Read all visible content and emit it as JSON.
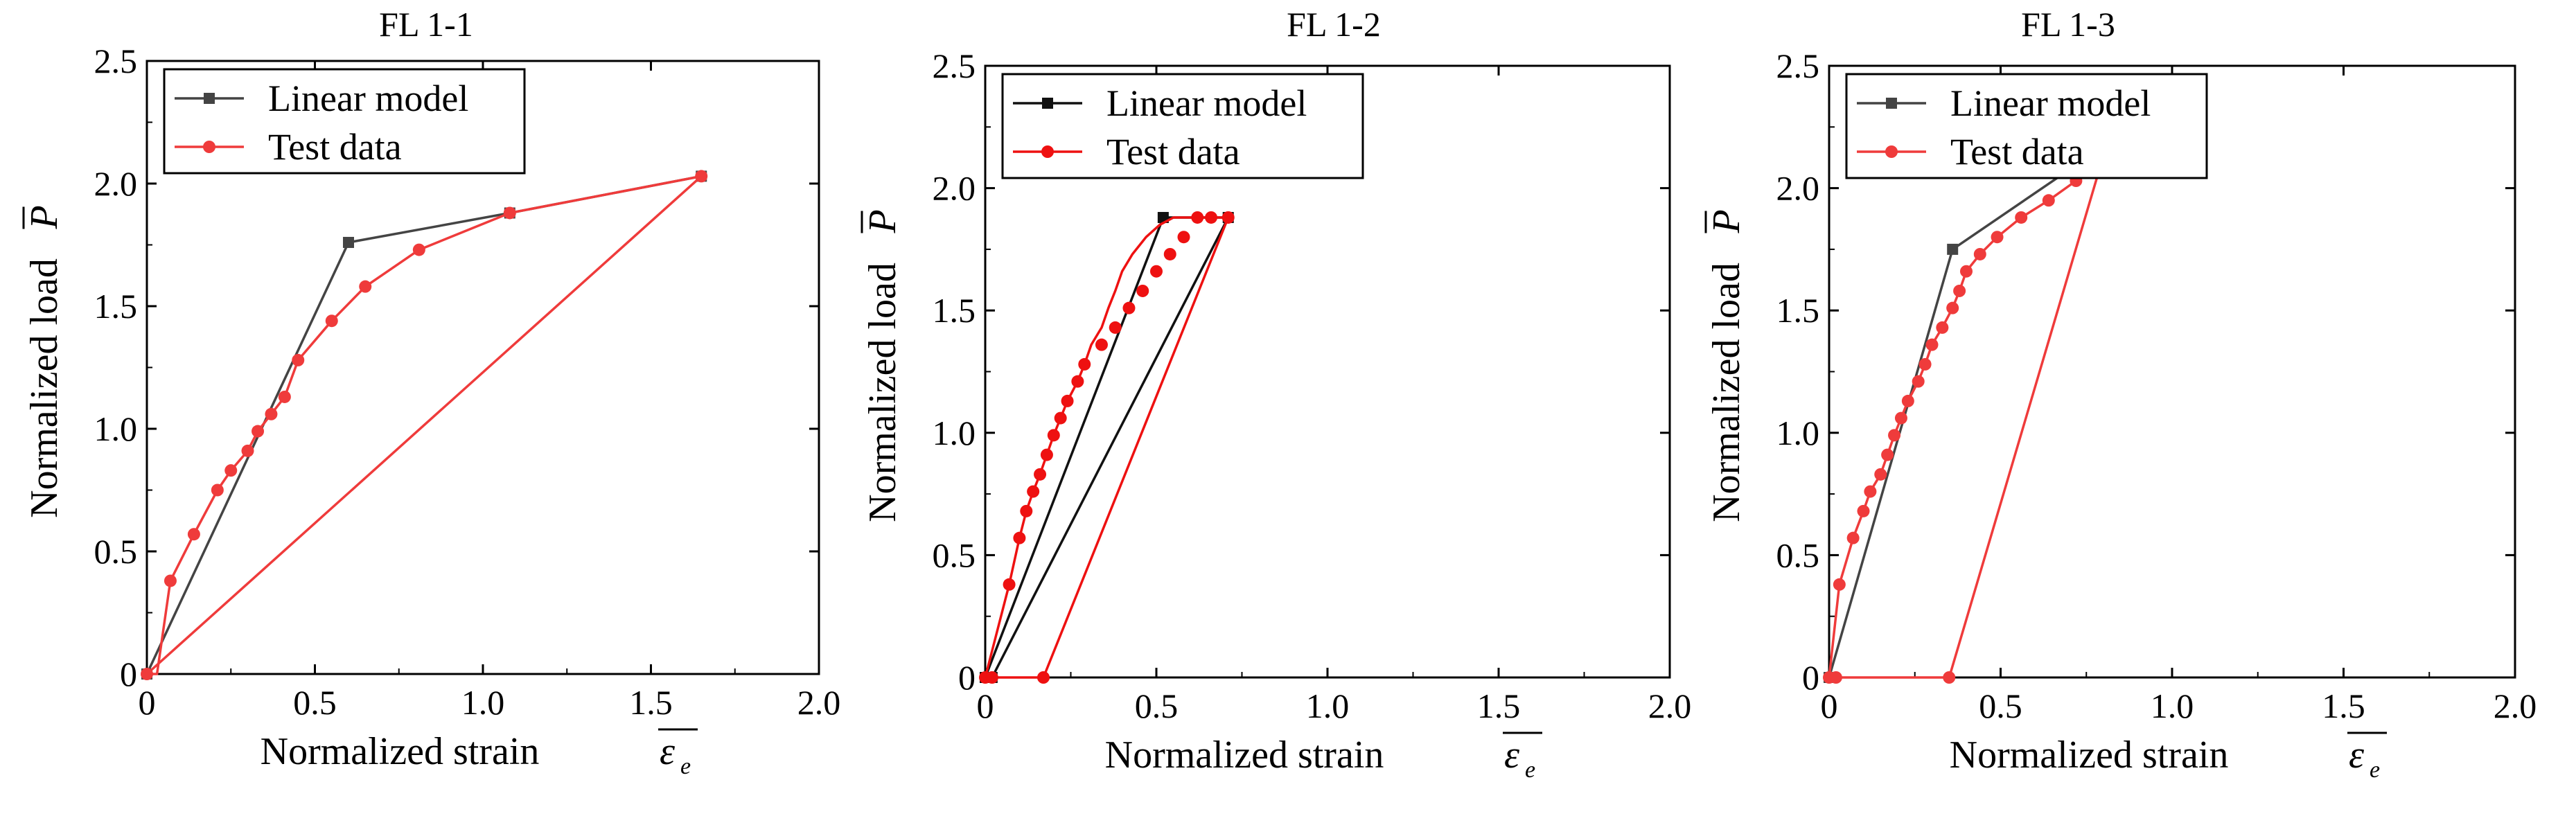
{
  "chart_data": [
    {
      "type": "line",
      "title": "FL 1-1",
      "xlabel": "Normalized strain",
      "xlabel_symbol": "ε",
      "xlabel_subscript": "e",
      "ylabel": "Normalized load",
      "ylabel_symbol": "P",
      "xlim": [
        0,
        2.0
      ],
      "ylim": [
        0,
        2.5
      ],
      "xticks": [
        "0",
        "0.5",
        "1.0",
        "1.5",
        "2.0"
      ],
      "yticks": [
        "0",
        "0.5",
        "1.0",
        "1.5",
        "2.0",
        "2.5"
      ],
      "legend_position": "top-left",
      "grid": false,
      "series": [
        {
          "name": "Linear model",
          "color": "#444444",
          "marker": "square",
          "x": [
            0,
            0.6,
            1.08,
            1.65
          ],
          "y": [
            0,
            1.76,
            1.88,
            2.03
          ],
          "marker_x": [
            0,
            0.6,
            1.08,
            1.65
          ],
          "marker_y": [
            0,
            1.76,
            1.88,
            2.03
          ]
        },
        {
          "name": "Test data",
          "color": "#ef3b3b",
          "marker": "circle",
          "x": [
            0,
            0.03,
            0.07,
            0.14,
            0.21,
            0.25,
            0.3,
            0.33,
            0.37,
            0.41,
            0.45,
            0.55,
            0.65,
            0.81,
            1.08,
            1.65,
            1.65,
            0,
            0,
            0
          ],
          "y": [
            0,
            0,
            0.38,
            0.57,
            0.75,
            0.83,
            0.91,
            0.99,
            1.06,
            1.13,
            1.28,
            1.44,
            1.58,
            1.73,
            1.88,
            2.03,
            2.03,
            0,
            0,
            0
          ],
          "marker_x": [
            0,
            0.07,
            0.14,
            0.21,
            0.25,
            0.3,
            0.33,
            0.37,
            0.41,
            0.45,
            0.55,
            0.65,
            0.81,
            1.08,
            1.65
          ],
          "marker_y": [
            0,
            0.38,
            0.57,
            0.75,
            0.83,
            0.91,
            0.99,
            1.06,
            1.13,
            1.28,
            1.44,
            1.58,
            1.73,
            1.88,
            2.03
          ]
        }
      ]
    },
    {
      "type": "line",
      "title": "FL 1-2",
      "xlabel": "Normalized strain",
      "xlabel_symbol": "ε",
      "xlabel_subscript": "e",
      "ylabel": "Normalized load",
      "ylabel_symbol": "P",
      "xlim": [
        0,
        2.0
      ],
      "ylim": [
        0,
        2.5
      ],
      "xticks": [
        "0",
        "0.5",
        "1.0",
        "1.5",
        "2.0"
      ],
      "yticks": [
        "0",
        "0.5",
        "1.0",
        "1.5",
        "2.0",
        "2.5"
      ],
      "legend_position": "top-left",
      "grid": false,
      "series": [
        {
          "name": "Linear model",
          "color": "#111111",
          "marker": "square",
          "x": [
            0,
            0.52,
            0.71,
            0.02
          ],
          "y": [
            0,
            1.88,
            1.88,
            0
          ],
          "marker_x": [
            0,
            0.52,
            0.71,
            0.02
          ],
          "marker_y": [
            0,
            1.88,
            1.88,
            0
          ]
        },
        {
          "name": "Test data",
          "color": "#ee1111",
          "marker": "circle",
          "x": [
            0,
            0.07,
            0.1,
            0.12,
            0.14,
            0.16,
            0.18,
            0.2,
            0.22,
            0.24,
            0.27,
            0.29,
            0.31,
            0.34,
            0.36,
            0.38,
            0.4,
            0.43,
            0.47,
            0.51,
            0.55,
            0.6,
            0.64,
            0.67,
            0.71,
            0.17,
            0,
            0.02
          ],
          "y": [
            0,
            0.38,
            0.57,
            0.68,
            0.76,
            0.83,
            0.91,
            0.99,
            1.06,
            1.13,
            1.21,
            1.28,
            1.36,
            1.43,
            1.51,
            1.58,
            1.66,
            1.73,
            1.8,
            1.85,
            1.88,
            1.88,
            1.88,
            1.88,
            1.88,
            0,
            0,
            0
          ],
          "marker_x": [
            0,
            0.07,
            0.1,
            0.12,
            0.14,
            0.16,
            0.18,
            0.2,
            0.22,
            0.24,
            0.27,
            0.29,
            0.34,
            0.38,
            0.42,
            0.46,
            0.5,
            0.54,
            0.58,
            0.62,
            0.66,
            0.71,
            0.17,
            0.02
          ],
          "marker_y": [
            0,
            0.38,
            0.57,
            0.68,
            0.76,
            0.83,
            0.91,
            0.99,
            1.06,
            1.13,
            1.21,
            1.28,
            1.36,
            1.43,
            1.51,
            1.58,
            1.66,
            1.73,
            1.8,
            1.88,
            1.88,
            1.88,
            0,
            0
          ]
        }
      ]
    },
    {
      "type": "line",
      "title": "FL 1-3",
      "xlabel": "Normalized strain",
      "xlabel_symbol": "ε",
      "xlabel_subscript": "e",
      "ylabel": "Normalized load",
      "ylabel_symbol": "P",
      "xlim": [
        0,
        2.0
      ],
      "ylim": [
        0,
        2.5
      ],
      "xticks": [
        "0",
        "0.5",
        "1.0",
        "1.5",
        "2.0"
      ],
      "yticks": [
        "0",
        "0.5",
        "1.0",
        "1.5",
        "2.0",
        "2.5"
      ],
      "legend_position": "top-left",
      "grid": false,
      "series": [
        {
          "name": "Linear model",
          "color": "#444444",
          "marker": "square",
          "x": [
            0,
            0.36,
            0.81
          ],
          "y": [
            0,
            1.75,
            2.18
          ],
          "marker_x": [
            0,
            0.36,
            0.81
          ],
          "marker_y": [
            0,
            1.75,
            2.18
          ]
        },
        {
          "name": "Test data",
          "color": "#ef3b3b",
          "marker": "circle",
          "x": [
            0,
            0.03,
            0.07,
            0.1,
            0.12,
            0.15,
            0.17,
            0.19,
            0.21,
            0.23,
            0.26,
            0.28,
            0.3,
            0.33,
            0.36,
            0.38,
            0.4,
            0.44,
            0.49,
            0.56,
            0.64,
            0.72,
            0.81,
            0.35,
            0.02
          ],
          "y": [
            0,
            0.38,
            0.57,
            0.68,
            0.76,
            0.83,
            0.91,
            0.99,
            1.06,
            1.13,
            1.21,
            1.28,
            1.36,
            1.43,
            1.51,
            1.58,
            1.66,
            1.73,
            1.8,
            1.88,
            1.95,
            2.03,
            2.18,
            0,
            0
          ],
          "marker_x": [
            0,
            0.03,
            0.07,
            0.1,
            0.12,
            0.15,
            0.17,
            0.19,
            0.21,
            0.23,
            0.26,
            0.28,
            0.3,
            0.33,
            0.36,
            0.38,
            0.4,
            0.44,
            0.49,
            0.56,
            0.64,
            0.72,
            0.81,
            0.35,
            0.02
          ],
          "marker_y": [
            0,
            0.38,
            0.57,
            0.68,
            0.76,
            0.83,
            0.91,
            0.99,
            1.06,
            1.13,
            1.21,
            1.28,
            1.36,
            1.43,
            1.51,
            1.58,
            1.66,
            1.73,
            1.8,
            1.88,
            1.95,
            2.03,
            2.18,
            0,
            0
          ]
        }
      ]
    }
  ]
}
